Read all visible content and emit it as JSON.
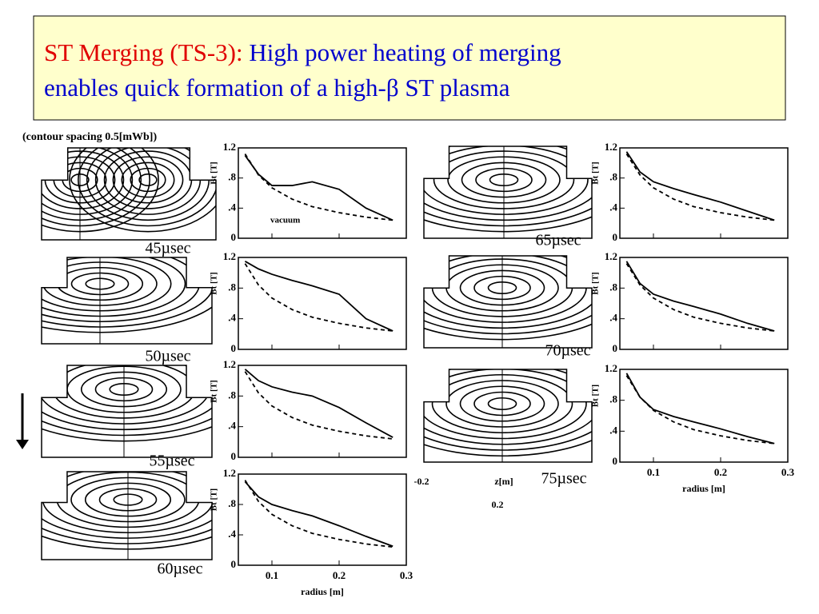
{
  "header": {
    "title_red": "ST Merging (TS-3):",
    "title_blue_1": "High power heating of merging",
    "title_blue_2": "enables quick formation of a high-β ST plasma"
  },
  "note": "(contour spacing 0.5[mWb])",
  "contour_axis": {
    "left": "-0.2",
    "mid": "z[m]",
    "right": "0.2"
  },
  "chart_data": [
    {
      "type": "line",
      "caption": "45µsec",
      "y_label": "Bt [T]",
      "annotation": "vacuum",
      "x": [
        0.06,
        0.08,
        0.1,
        0.13,
        0.16,
        0.2,
        0.24,
        0.28
      ],
      "series": [
        {
          "color": "#000",
          "dashed": false,
          "values": [
            1.1,
            0.85,
            0.7,
            0.7,
            0.75,
            0.65,
            0.4,
            0.24
          ]
        },
        {
          "color": "#000",
          "dashed": true,
          "values": [
            1.12,
            0.84,
            0.67,
            0.52,
            0.42,
            0.34,
            0.28,
            0.24
          ]
        }
      ],
      "xlim": [
        0.05,
        0.3
      ],
      "xticks": [
        0.1,
        0.2,
        0.3
      ],
      "show_xtick_labels": false,
      "ylim": [
        0,
        1.2
      ],
      "yticks": [
        0,
        {
          "value": 0.4,
          "label": ".4"
        },
        {
          "value": 0.8,
          "label": ".8"
        },
        1.2
      ]
    },
    {
      "type": "line",
      "caption": "50µsec",
      "y_label": "Bt [T]",
      "x": [
        0.06,
        0.08,
        0.1,
        0.13,
        0.16,
        0.2,
        0.24,
        0.28
      ],
      "series": [
        {
          "color": "#000",
          "dashed": false,
          "values": [
            1.15,
            1.05,
            0.98,
            0.9,
            0.83,
            0.72,
            0.4,
            0.24
          ]
        },
        {
          "color": "#000",
          "dashed": true,
          "values": [
            1.12,
            0.84,
            0.67,
            0.52,
            0.42,
            0.34,
            0.28,
            0.24
          ]
        }
      ],
      "xlim": [
        0.05,
        0.3
      ],
      "xticks": [
        0.1,
        0.2,
        0.3
      ],
      "show_xtick_labels": false,
      "ylim": [
        0,
        1.2
      ],
      "yticks": [
        0,
        {
          "value": 0.4,
          "label": ".4"
        },
        {
          "value": 0.8,
          "label": ".8"
        },
        1.2
      ]
    },
    {
      "type": "line",
      "caption": "55µsec",
      "y_label": "Bt [T]",
      "x": [
        0.06,
        0.08,
        0.1,
        0.13,
        0.16,
        0.2,
        0.24,
        0.28
      ],
      "series": [
        {
          "color": "#000",
          "dashed": false,
          "values": [
            1.15,
            1.0,
            0.92,
            0.85,
            0.8,
            0.65,
            0.45,
            0.26
          ]
        },
        {
          "color": "#000",
          "dashed": true,
          "values": [
            1.12,
            0.84,
            0.67,
            0.52,
            0.42,
            0.34,
            0.28,
            0.24
          ]
        }
      ],
      "xlim": [
        0.05,
        0.3
      ],
      "xticks": [
        0.1,
        0.2,
        0.3
      ],
      "show_xtick_labels": false,
      "ylim": [
        0,
        1.2
      ],
      "yticks": [
        0,
        {
          "value": 0.4,
          "label": ".4"
        },
        {
          "value": 0.8,
          "label": ".8"
        },
        1.2
      ]
    },
    {
      "type": "line",
      "caption": "60µsec",
      "y_label": "Bt [T]",
      "x_label": "radius [m]",
      "x": [
        0.06,
        0.08,
        0.1,
        0.13,
        0.16,
        0.2,
        0.24,
        0.28
      ],
      "series": [
        {
          "color": "#000",
          "dashed": false,
          "values": [
            1.1,
            0.9,
            0.8,
            0.72,
            0.65,
            0.52,
            0.38,
            0.25
          ]
        },
        {
          "color": "#000",
          "dashed": true,
          "values": [
            1.12,
            0.84,
            0.67,
            0.52,
            0.42,
            0.34,
            0.28,
            0.24
          ]
        }
      ],
      "xlim": [
        0.05,
        0.3
      ],
      "xticks": [
        0.1,
        0.2,
        0.3
      ],
      "show_xtick_labels": true,
      "ylim": [
        0,
        1.2
      ],
      "yticks": [
        0,
        {
          "value": 0.4,
          "label": ".4"
        },
        {
          "value": 0.8,
          "label": ".8"
        },
        1.2
      ]
    },
    {
      "type": "line",
      "caption": "65µsec",
      "y_label": "Bt [T]",
      "x": [
        0.06,
        0.08,
        0.1,
        0.13,
        0.16,
        0.2,
        0.24,
        0.28
      ],
      "series": [
        {
          "color": "#000",
          "dashed": false,
          "values": [
            1.15,
            0.88,
            0.75,
            0.66,
            0.58,
            0.48,
            0.36,
            0.24
          ]
        },
        {
          "color": "#000",
          "dashed": true,
          "values": [
            1.12,
            0.84,
            0.67,
            0.52,
            0.42,
            0.34,
            0.28,
            0.24
          ]
        }
      ],
      "xlim": [
        0.05,
        0.3
      ],
      "xticks": [
        0.1,
        0.2,
        0.3
      ],
      "show_xtick_labels": false,
      "ylim": [
        0,
        1.2
      ],
      "yticks": [
        0,
        {
          "value": 0.4,
          "label": ".4"
        },
        {
          "value": 0.8,
          "label": ".8"
        },
        1.2
      ]
    },
    {
      "type": "line",
      "caption": "70µsec",
      "y_label": "Bt [T]",
      "x": [
        0.06,
        0.08,
        0.1,
        0.13,
        0.16,
        0.2,
        0.24,
        0.28
      ],
      "series": [
        {
          "color": "#000",
          "dashed": false,
          "values": [
            1.15,
            0.86,
            0.72,
            0.63,
            0.56,
            0.46,
            0.34,
            0.24
          ]
        },
        {
          "color": "#000",
          "dashed": true,
          "values": [
            1.12,
            0.84,
            0.67,
            0.52,
            0.42,
            0.34,
            0.28,
            0.24
          ]
        }
      ],
      "xlim": [
        0.05,
        0.3
      ],
      "xticks": [
        0.1,
        0.2,
        0.3
      ],
      "show_xtick_labels": false,
      "ylim": [
        0,
        1.2
      ],
      "yticks": [
        0,
        {
          "value": 0.4,
          "label": ".4"
        },
        {
          "value": 0.8,
          "label": ".8"
        },
        1.2
      ]
    },
    {
      "type": "line",
      "caption": "75µsec",
      "y_label": "Bt [T]",
      "x_label": "radius [m]",
      "x": [
        0.06,
        0.08,
        0.1,
        0.13,
        0.16,
        0.2,
        0.24,
        0.28
      ],
      "series": [
        {
          "color": "#000",
          "dashed": false,
          "values": [
            1.15,
            0.84,
            0.68,
            0.59,
            0.52,
            0.43,
            0.33,
            0.24
          ]
        },
        {
          "color": "#000",
          "dashed": true,
          "values": [
            1.12,
            0.84,
            0.67,
            0.52,
            0.42,
            0.34,
            0.28,
            0.24
          ]
        }
      ],
      "xlim": [
        0.05,
        0.3
      ],
      "xticks": [
        0.1,
        0.2,
        0.3
      ],
      "show_xtick_labels": true,
      "ylim": [
        0,
        1.2
      ],
      "yticks": [
        0,
        {
          "value": 0.4,
          "label": ".4"
        },
        {
          "value": 0.8,
          "label": ".8"
        },
        1.2
      ]
    }
  ]
}
